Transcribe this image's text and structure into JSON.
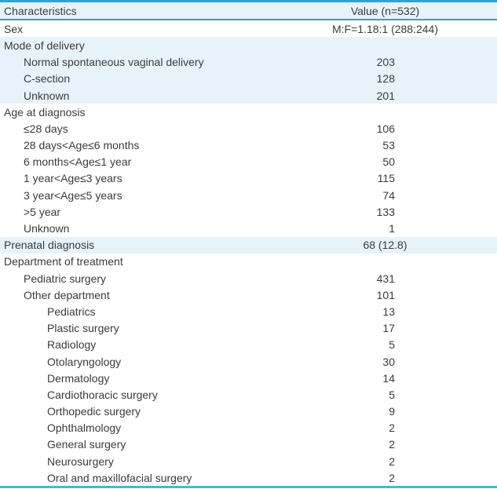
{
  "table": {
    "header": {
      "characteristics": "Characteristics",
      "value": "Value (n=532)"
    },
    "rows": [
      {
        "label": "Sex",
        "value": "M:F=1.18:1 (288:244)",
        "indent": 0,
        "band": "white"
      },
      {
        "label": "Mode of delivery",
        "value": "",
        "indent": 0,
        "band": "blue"
      },
      {
        "label": "Normal spontaneous vaginal delivery",
        "value": "203",
        "indent": 1,
        "band": "blue"
      },
      {
        "label": "C-section",
        "value": "128",
        "indent": 1,
        "band": "blue"
      },
      {
        "label": "Unknown",
        "value": "201",
        "indent": 1,
        "band": "blue"
      },
      {
        "label": "Age at diagnosis",
        "value": "",
        "indent": 0,
        "band": "white"
      },
      {
        "label": "≤28 days",
        "value": "106",
        "indent": 1,
        "band": "white"
      },
      {
        "label": "28 days<Age≤6 months",
        "value": "53",
        "indent": 1,
        "band": "white"
      },
      {
        "label": "6 months<Age≤1 year",
        "value": "50",
        "indent": 1,
        "band": "white"
      },
      {
        "label": "1 year<Age≤3 years",
        "value": "115",
        "indent": 1,
        "band": "white"
      },
      {
        "label": "3 year<Age≤5 years",
        "value": "74",
        "indent": 1,
        "band": "white"
      },
      {
        "label": ">5 year",
        "value": "133",
        "indent": 1,
        "band": "white"
      },
      {
        "label": "Unknown",
        "value": "1",
        "indent": 1,
        "band": "white"
      },
      {
        "label": "Prenatal diagnosis",
        "value": "68 (12.8)",
        "indent": 0,
        "band": "blue"
      },
      {
        "label": "Department of treatment",
        "value": "",
        "indent": 0,
        "band": "white"
      },
      {
        "label": "Pediatric surgery",
        "value": "431",
        "indent": 1,
        "band": "white"
      },
      {
        "label": "Other department",
        "value": "101",
        "indent": 1,
        "band": "white"
      },
      {
        "label": "Pediatrics",
        "value": "13",
        "indent": 2,
        "band": "white"
      },
      {
        "label": "Plastic surgery",
        "value": "17",
        "indent": 2,
        "band": "white"
      },
      {
        "label": "Radiology",
        "value": "5",
        "indent": 2,
        "band": "white"
      },
      {
        "label": "Otolaryngology",
        "value": "30",
        "indent": 2,
        "band": "white"
      },
      {
        "label": "Dermatology",
        "value": "14",
        "indent": 2,
        "band": "white"
      },
      {
        "label": "Cardiothoracic surgery",
        "value": "5",
        "indent": 2,
        "band": "white"
      },
      {
        "label": "Orthopedic surgery",
        "value": "9",
        "indent": 2,
        "band": "white"
      },
      {
        "label": "Ophthalmology",
        "value": "2",
        "indent": 2,
        "band": "white"
      },
      {
        "label": "General surgery",
        "value": "2",
        "indent": 2,
        "band": "white"
      },
      {
        "label": "Neurosurgery",
        "value": "2",
        "indent": 2,
        "band": "white"
      },
      {
        "label": "Oral and maxillofacial surgery",
        "value": "2",
        "indent": 2,
        "band": "white"
      }
    ],
    "colors": {
      "rule_strong": "#2ea3d2",
      "rule_light": "#45b6dd",
      "band_blue": "#e7f3fb",
      "text": "#3b3b3b"
    }
  }
}
